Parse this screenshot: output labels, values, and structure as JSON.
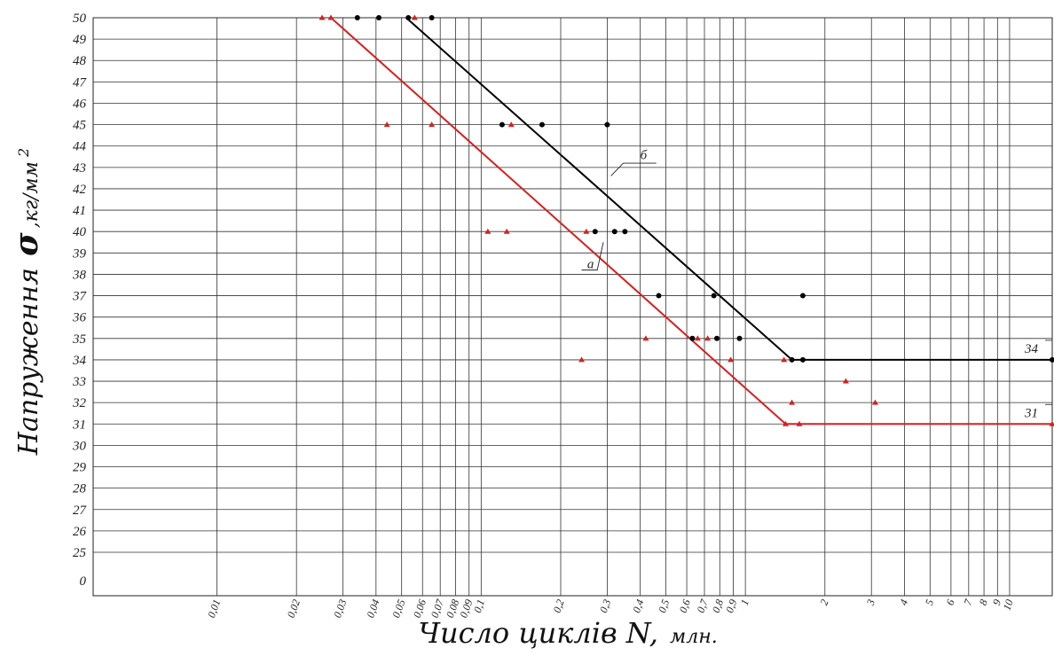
{
  "chart_data": {
    "type": "line",
    "xscale": "log",
    "xlim": [
      0.0034,
      14.5
    ],
    "ylim": [
      25,
      50
    ],
    "y_zero_label": "0",
    "grid": true,
    "xlabel": "Число циклів N,",
    "xlabel_unit": "млн.",
    "ylabel": "Напруження",
    "ylabel_symbol": "σ",
    "ylabel_unit": ",кг/мм",
    "ylabel_unit_sup": "2",
    "x_ticks": [
      {
        "v": 0.01,
        "label": "0,01"
      },
      {
        "v": 0.02,
        "label": "0,02"
      },
      {
        "v": 0.03,
        "label": "0,03"
      },
      {
        "v": 0.04,
        "label": "0,04"
      },
      {
        "v": 0.05,
        "label": "0,05"
      },
      {
        "v": 0.06,
        "label": "0,06"
      },
      {
        "v": 0.07,
        "label": "0,07"
      },
      {
        "v": 0.08,
        "label": "0,08"
      },
      {
        "v": 0.09,
        "label": "0,09"
      },
      {
        "v": 0.1,
        "label": "0,1"
      },
      {
        "v": 0.2,
        "label": "0,2"
      },
      {
        "v": 0.3,
        "label": "0,3"
      },
      {
        "v": 0.4,
        "label": "0,4"
      },
      {
        "v": 0.5,
        "label": "0,5"
      },
      {
        "v": 0.6,
        "label": "0,6"
      },
      {
        "v": 0.7,
        "label": "0,7"
      },
      {
        "v": 0.8,
        "label": "0,8"
      },
      {
        "v": 0.9,
        "label": "0,9"
      },
      {
        "v": 1,
        "label": "1"
      },
      {
        "v": 2,
        "label": "2"
      },
      {
        "v": 3,
        "label": "3"
      },
      {
        "v": 4,
        "label": "4"
      },
      {
        "v": 5,
        "label": "5"
      },
      {
        "v": 6,
        "label": "6"
      },
      {
        "v": 7,
        "label": "7"
      },
      {
        "v": 8,
        "label": "8"
      },
      {
        "v": 9,
        "label": "9"
      },
      {
        "v": 10,
        "label": "10"
      }
    ],
    "y_ticks": [
      25,
      26,
      27,
      28,
      29,
      30,
      31,
      32,
      33,
      34,
      35,
      36,
      37,
      38,
      39,
      40,
      41,
      42,
      43,
      44,
      45,
      46,
      47,
      48,
      49,
      50
    ],
    "series": [
      {
        "name": "б",
        "color": "#000000",
        "marker": "dot",
        "line": [
          [
            0.052,
            50
          ],
          [
            1.5,
            34
          ],
          [
            14.5,
            34
          ]
        ],
        "points": [
          [
            0.034,
            50
          ],
          [
            0.041,
            50
          ],
          [
            0.053,
            50
          ],
          [
            0.065,
            50
          ],
          [
            0.12,
            45
          ],
          [
            0.17,
            45
          ],
          [
            0.3,
            45
          ],
          [
            0.27,
            40
          ],
          [
            0.32,
            40
          ],
          [
            0.35,
            40
          ],
          [
            0.47,
            37
          ],
          [
            0.76,
            37
          ],
          [
            1.65,
            37
          ],
          [
            0.63,
            35
          ],
          [
            0.78,
            35
          ],
          [
            0.95,
            35
          ],
          [
            1.5,
            34
          ],
          [
            1.65,
            34
          ],
          [
            14.5,
            34
          ]
        ]
      },
      {
        "name": "а",
        "color": "#d62020",
        "marker": "triangle",
        "line": [
          [
            0.027,
            50
          ],
          [
            1.42,
            31
          ],
          [
            14.5,
            31
          ]
        ],
        "points": [
          [
            0.025,
            50
          ],
          [
            0.027,
            50
          ],
          [
            0.056,
            50
          ],
          [
            0.044,
            45
          ],
          [
            0.065,
            45
          ],
          [
            0.13,
            45
          ],
          [
            0.106,
            40
          ],
          [
            0.125,
            40
          ],
          [
            0.25,
            40
          ],
          [
            0.42,
            35
          ],
          [
            0.66,
            35
          ],
          [
            0.72,
            35
          ],
          [
            0.24,
            34
          ],
          [
            0.88,
            34
          ],
          [
            1.4,
            34
          ],
          [
            2.4,
            33
          ],
          [
            1.5,
            32
          ],
          [
            3.1,
            32
          ],
          [
            1.42,
            31
          ],
          [
            1.6,
            31
          ],
          [
            14.5,
            31
          ]
        ]
      }
    ],
    "annotations": [
      {
        "text": "б",
        "series": "б"
      },
      {
        "text": "а",
        "series": "а"
      },
      {
        "text": "34",
        "series": "б"
      },
      {
        "text": "31",
        "series": "а"
      }
    ]
  }
}
